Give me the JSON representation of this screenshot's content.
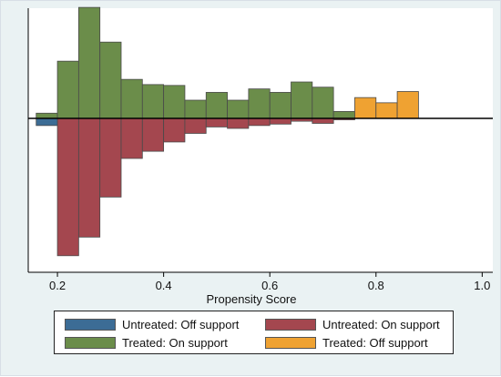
{
  "chart_data": {
    "type": "bar",
    "title": "",
    "xlabel": "Propensity Score",
    "ylabel": "",
    "xlim": [
      0.145,
      1.02
    ],
    "xticks": [
      "0.2",
      "0.4",
      "0.6",
      "0.8",
      "1.0"
    ],
    "y_scale_note": "mirrored histogram: treated above zero, untreated below zero; no y tick labels shown",
    "ylim": [
      -2.05,
      1.25
    ],
    "grid": false,
    "legend_position": "bottom",
    "series": [
      {
        "name": "Untreated: Off support",
        "color": "#3c6c95",
        "bins": [
          {
            "x0": 0.16,
            "x1": 0.2,
            "value": -0.1
          }
        ]
      },
      {
        "name": "Untreated: On support",
        "color": "#a4474f",
        "bins": [
          {
            "x0": 0.2,
            "x1": 0.24,
            "value": -1.92
          },
          {
            "x0": 0.24,
            "x1": 0.28,
            "value": -1.66
          },
          {
            "x0": 0.28,
            "x1": 0.32,
            "value": -1.1
          },
          {
            "x0": 0.32,
            "x1": 0.36,
            "value": -0.56
          },
          {
            "x0": 0.36,
            "x1": 0.4,
            "value": -0.46
          },
          {
            "x0": 0.4,
            "x1": 0.44,
            "value": -0.33
          },
          {
            "x0": 0.44,
            "x1": 0.48,
            "value": -0.21
          },
          {
            "x0": 0.48,
            "x1": 0.52,
            "value": -0.12
          },
          {
            "x0": 0.52,
            "x1": 0.56,
            "value": -0.14
          },
          {
            "x0": 0.56,
            "x1": 0.6,
            "value": -0.1
          },
          {
            "x0": 0.6,
            "x1": 0.64,
            "value": -0.08
          },
          {
            "x0": 0.64,
            "x1": 0.68,
            "value": -0.04
          },
          {
            "x0": 0.68,
            "x1": 0.72,
            "value": -0.07
          },
          {
            "x0": 0.72,
            "x1": 0.76,
            "value": -0.02
          }
        ]
      },
      {
        "name": "Treated: On support",
        "color": "#6b8d4a",
        "bins": [
          {
            "x0": 0.16,
            "x1": 0.2,
            "value": 0.06
          },
          {
            "x0": 0.2,
            "x1": 0.24,
            "value": 0.66
          },
          {
            "x0": 0.24,
            "x1": 0.28,
            "value": 1.28
          },
          {
            "x0": 0.28,
            "x1": 0.32,
            "value": 0.88
          },
          {
            "x0": 0.32,
            "x1": 0.36,
            "value": 0.45
          },
          {
            "x0": 0.36,
            "x1": 0.4,
            "value": 0.39
          },
          {
            "x0": 0.4,
            "x1": 0.44,
            "value": 0.38
          },
          {
            "x0": 0.44,
            "x1": 0.48,
            "value": 0.21
          },
          {
            "x0": 0.48,
            "x1": 0.52,
            "value": 0.3
          },
          {
            "x0": 0.52,
            "x1": 0.56,
            "value": 0.21
          },
          {
            "x0": 0.56,
            "x1": 0.6,
            "value": 0.34
          },
          {
            "x0": 0.6,
            "x1": 0.64,
            "value": 0.3
          },
          {
            "x0": 0.64,
            "x1": 0.68,
            "value": 0.42
          },
          {
            "x0": 0.68,
            "x1": 0.72,
            "value": 0.36
          },
          {
            "x0": 0.72,
            "x1": 0.76,
            "value": 0.08
          }
        ]
      },
      {
        "name": "Treated: Off support",
        "color": "#efa232",
        "bins": [
          {
            "x0": 0.76,
            "x1": 0.8,
            "value": 0.24
          },
          {
            "x0": 0.8,
            "x1": 0.84,
            "value": 0.18
          },
          {
            "x0": 0.84,
            "x1": 0.88,
            "value": 0.31
          }
        ]
      }
    ]
  }
}
